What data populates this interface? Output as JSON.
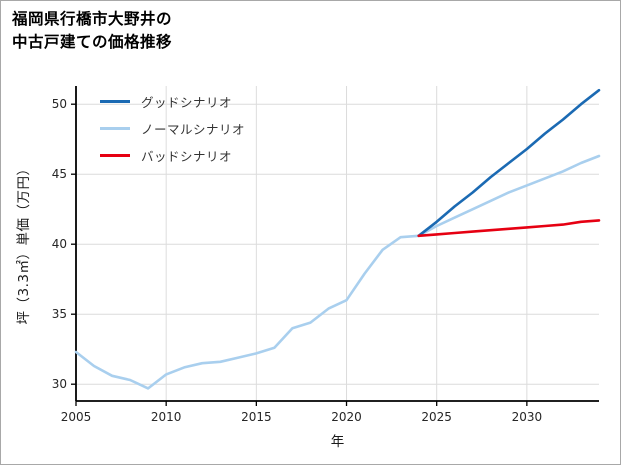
{
  "title": {
    "line1": "福岡県行橋市大野井の",
    "line2": "中古戸建ての価格推移"
  },
  "chart_data": {
    "type": "line",
    "title": "福岡県行橋市大野井の中古戸建ての価格推移",
    "xlabel": "年",
    "ylabel": "坪（3.3㎡）単価（万円）",
    "xlim": [
      2005,
      2034
    ],
    "ylim": [
      28.8,
      51.3
    ],
    "x_ticks": [
      2005,
      2010,
      2015,
      2020,
      2025,
      2030
    ],
    "y_ticks": [
      30,
      35,
      40,
      45,
      50
    ],
    "grid": true,
    "legend_position": "upper left",
    "colors": {
      "good": "#1b6ab3",
      "normal": "#a9cfee",
      "bad": "#e60012",
      "gridline": "#dcdcdc",
      "spine": "#000000"
    },
    "series": [
      {
        "name": "グッドシナリオ",
        "color": "#1b6ab3",
        "zorder": 2,
        "x": [
          2024,
          2025,
          2026,
          2027,
          2028,
          2029,
          2030,
          2031,
          2032,
          2033,
          2034
        ],
        "y": [
          40.6,
          41.6,
          42.7,
          43.7,
          44.8,
          45.8,
          46.8,
          47.9,
          48.9,
          50.0,
          51.0
        ]
      },
      {
        "name": "ノーマルシナリオ",
        "color": "#a9cfee",
        "zorder": 1,
        "x": [
          2005,
          2006,
          2007,
          2008,
          2009,
          2010,
          2011,
          2012,
          2013,
          2014,
          2015,
          2016,
          2017,
          2018,
          2019,
          2020,
          2021,
          2022,
          2023,
          2024,
          2025,
          2026,
          2027,
          2028,
          2029,
          2030,
          2031,
          2032,
          2033,
          2034
        ],
        "y": [
          32.3,
          31.3,
          30.6,
          30.3,
          29.7,
          30.7,
          31.2,
          31.5,
          31.6,
          31.9,
          32.2,
          32.6,
          34.0,
          34.4,
          35.4,
          36.0,
          37.9,
          39.6,
          40.5,
          40.6,
          41.3,
          41.9,
          42.5,
          43.1,
          43.7,
          44.2,
          44.7,
          45.2,
          45.8,
          46.3
        ]
      },
      {
        "name": "バッドシナリオ",
        "color": "#e60012",
        "zorder": 3,
        "x": [
          2024,
          2025,
          2026,
          2027,
          2028,
          2029,
          2030,
          2031,
          2032,
          2033,
          2034
        ],
        "y": [
          40.6,
          40.7,
          40.8,
          40.9,
          41.0,
          41.1,
          41.2,
          41.3,
          41.4,
          41.6,
          41.7
        ]
      }
    ]
  }
}
